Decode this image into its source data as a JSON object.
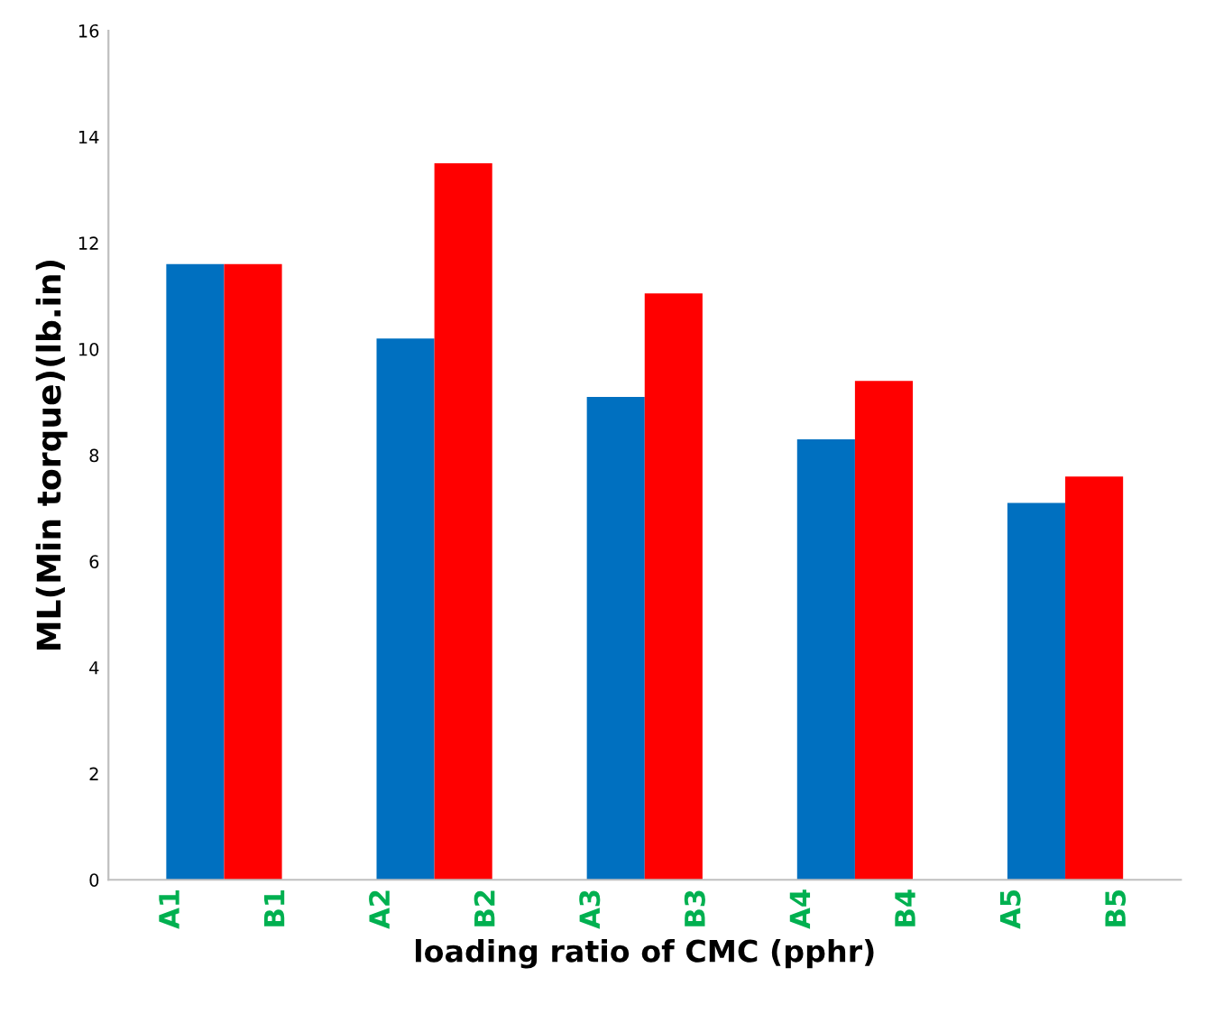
{
  "chart_data": {
    "type": "bar",
    "xlabel": "loading ratio of CMC (pphr)",
    "ylabel": "ML(Min torque)(lb.in)",
    "categories": [
      "A1",
      "B1",
      "A2",
      "B2",
      "A3",
      "B3",
      "A4",
      "B4",
      "A5",
      "B5"
    ],
    "values": [
      11.6,
      11.6,
      10.2,
      13.5,
      9.1,
      11.05,
      8.3,
      9.4,
      7.1,
      7.6
    ],
    "colors": [
      "#0070c0",
      "#ff0000",
      "#0070c0",
      "#ff0000",
      "#0070c0",
      "#ff0000",
      "#0070c0",
      "#ff0000",
      "#0070c0",
      "#ff0000"
    ],
    "ylim": [
      0,
      16
    ],
    "yticks": [
      0,
      2,
      4,
      6,
      8,
      10,
      12,
      14,
      16
    ],
    "grid": false,
    "legend": false
  }
}
